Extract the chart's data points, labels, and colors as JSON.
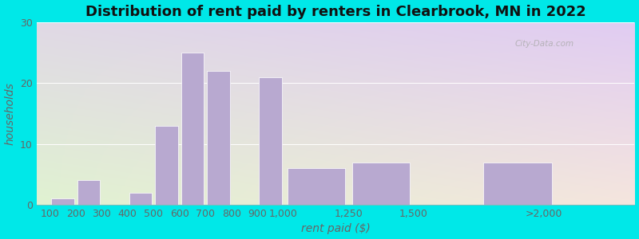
{
  "title": "Distribution of rent paid by renters in Clearbrook, MN in 2022",
  "xlabel": "rent paid ($)",
  "ylabel": "households",
  "bar_color": "#b8a9d0",
  "bar_edgecolor": "#ffffff",
  "background_outer": "#00e8e8",
  "ylim": [
    0,
    30
  ],
  "yticks": [
    0,
    10,
    20,
    30
  ],
  "xtick_positions": [
    100,
    200,
    300,
    400,
    500,
    600,
    700,
    800,
    900,
    1000,
    1250,
    1500,
    2000
  ],
  "xtick_labels": [
    "100",
    "200",
    "300",
    "400",
    "500",
    "600",
    "700",
    "800",
    "900",
    "1,000",
    "1,250",
    "1,500",
    ">2,000"
  ],
  "bar_lefts": [
    100,
    200,
    300,
    400,
    500,
    600,
    700,
    800,
    900,
    1000,
    1250,
    1750
  ],
  "bar_widths": [
    100,
    100,
    100,
    100,
    100,
    100,
    100,
    100,
    100,
    250,
    250,
    300
  ],
  "values": [
    1,
    4,
    0,
    2,
    13,
    25,
    22,
    0,
    21,
    6,
    7,
    7
  ],
  "xlim": [
    50,
    2350
  ],
  "title_fontsize": 13,
  "axis_label_fontsize": 10,
  "tick_fontsize": 9,
  "watermark": "City-Data.com"
}
